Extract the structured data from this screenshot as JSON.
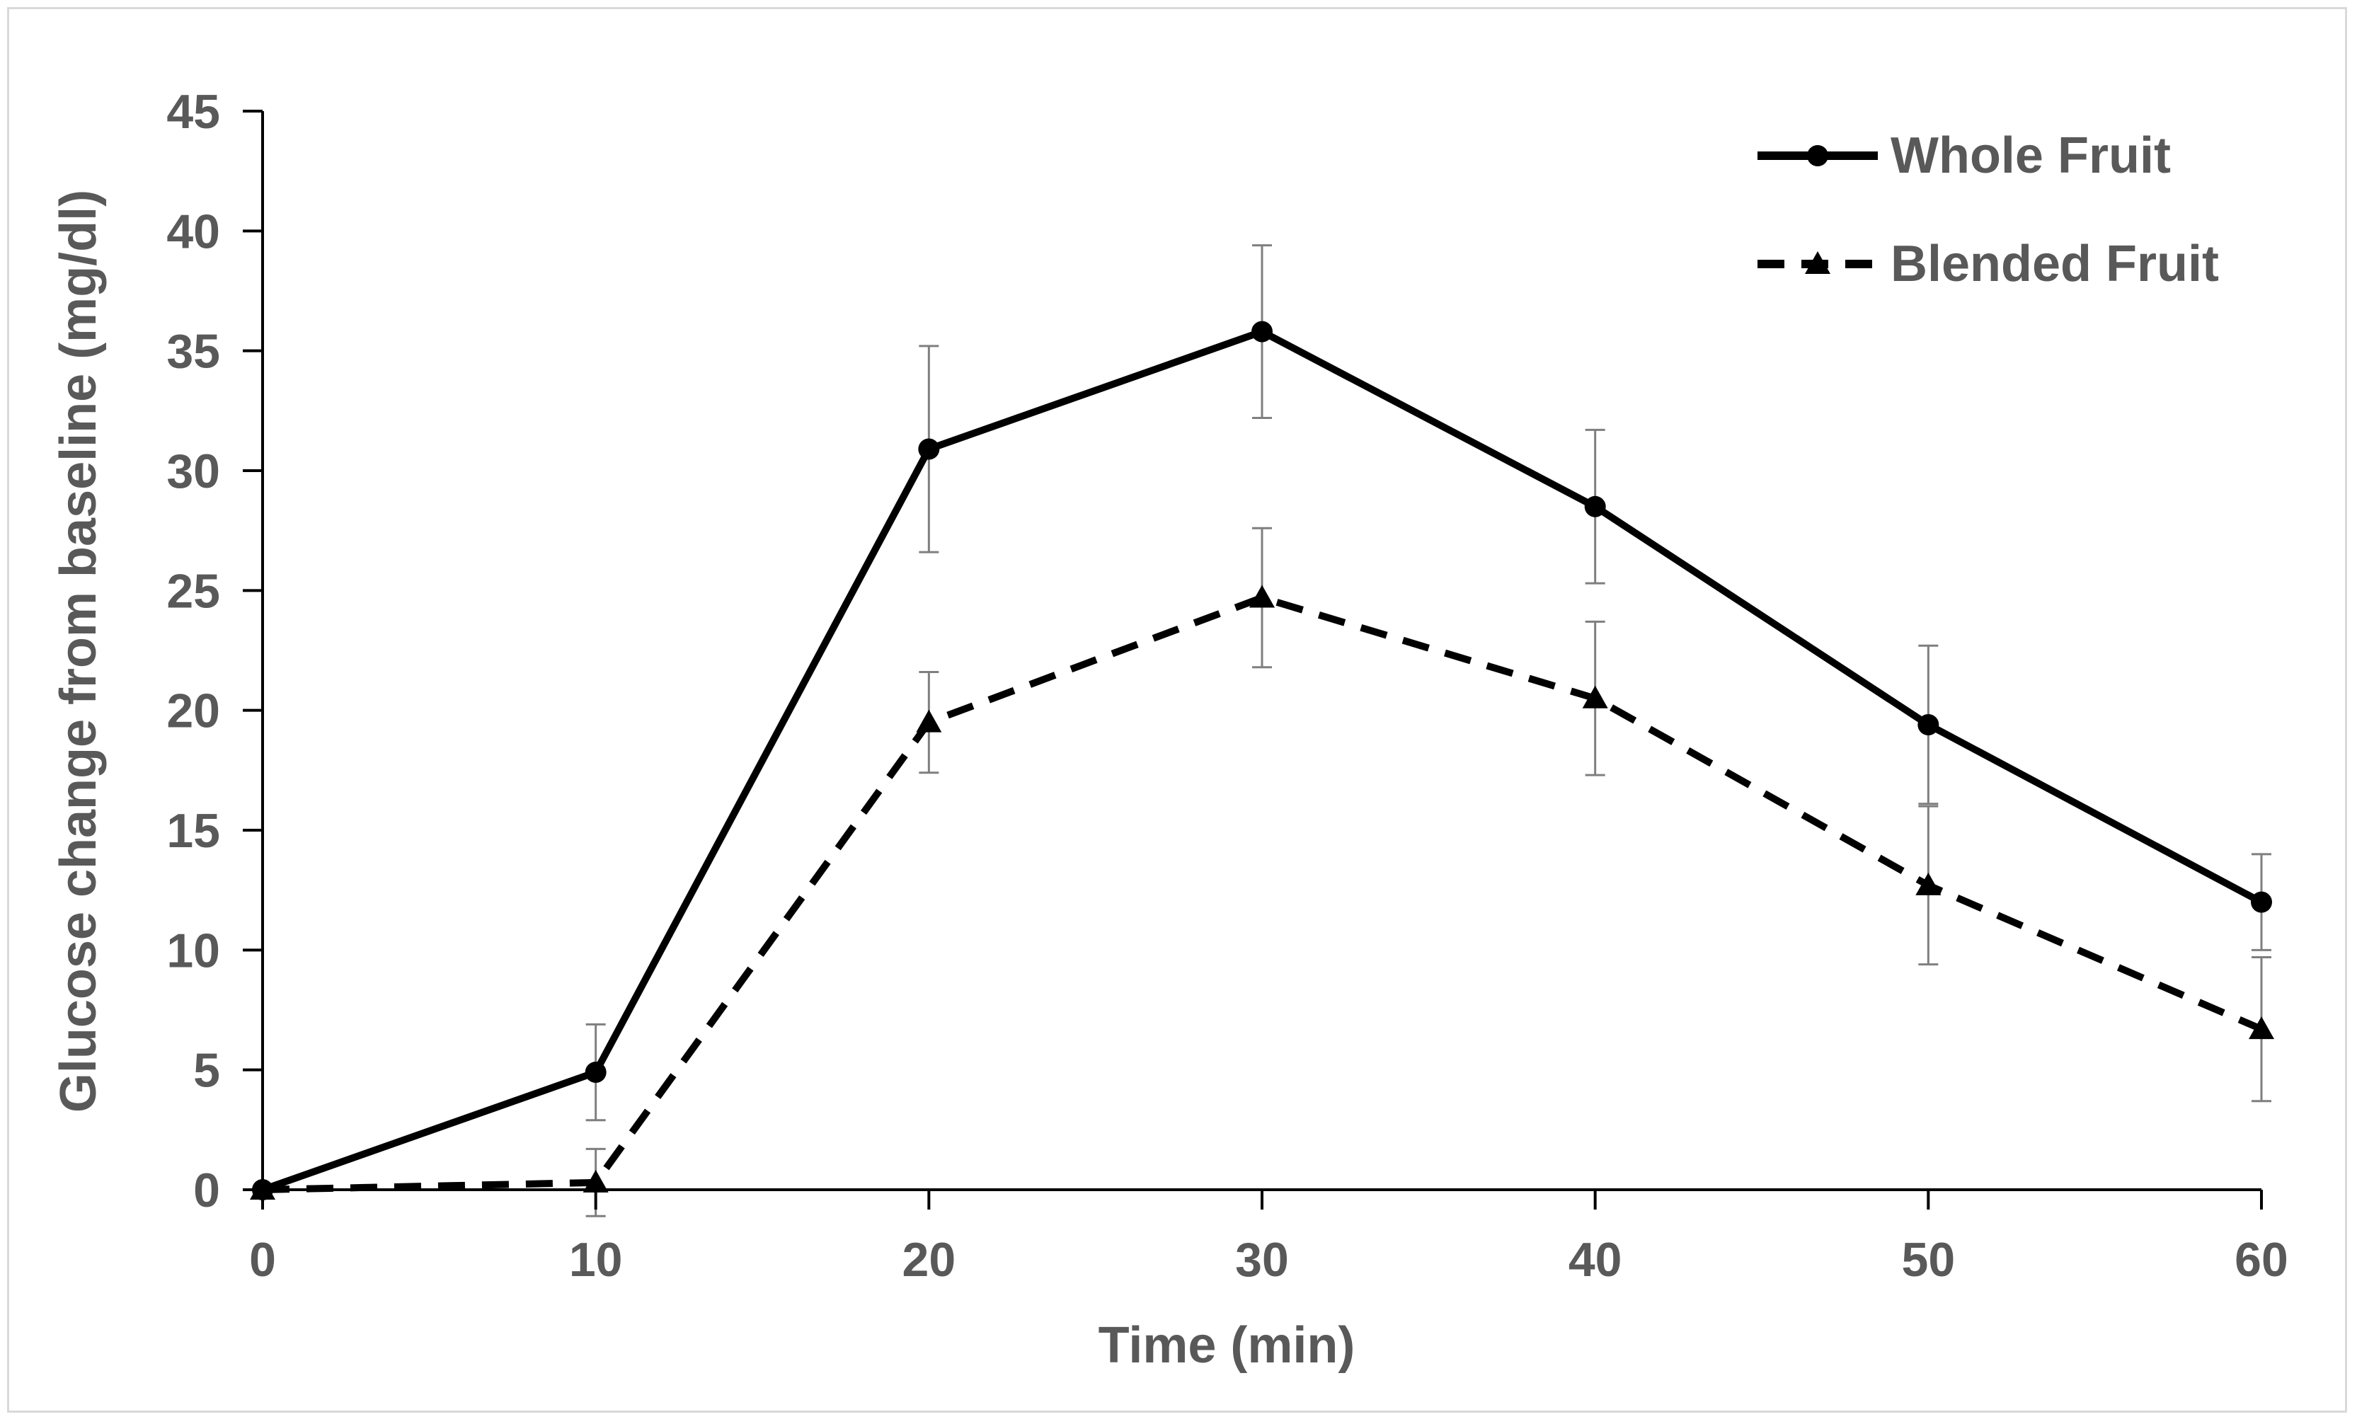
{
  "chart_data": {
    "type": "line",
    "title": "",
    "xlabel": "Time (min)",
    "ylabel": "Glucose change from baseline (mg/dl)",
    "x": [
      0,
      10,
      20,
      30,
      40,
      50,
      60
    ],
    "x_ticks": [
      "0",
      "10",
      "20",
      "30",
      "40",
      "50",
      "60"
    ],
    "y_ticks": [
      "0",
      "5",
      "10",
      "15",
      "20",
      "25",
      "30",
      "35",
      "40",
      "45"
    ],
    "xlim": [
      0,
      60
    ],
    "ylim": [
      0,
      45
    ],
    "grid": false,
    "legend_position": "top-right",
    "series": [
      {
        "name": "Whole Fruit",
        "style": "solid",
        "marker": "circle",
        "color": "#000000",
        "values": [
          0,
          4.9,
          30.9,
          35.8,
          28.5,
          19.4,
          12.0
        ],
        "error": [
          0,
          2.0,
          4.3,
          3.6,
          3.2,
          3.3,
          2.0
        ]
      },
      {
        "name": "Blended Fruit",
        "style": "dashed",
        "marker": "triangle",
        "color": "#000000",
        "values": [
          0,
          0.3,
          19.5,
          24.7,
          20.5,
          12.7,
          6.7
        ],
        "error": [
          0,
          1.4,
          2.1,
          2.9,
          3.2,
          3.3,
          3.0
        ]
      }
    ],
    "errorbar_color": "#7f7f7f",
    "axis_color": "#000000",
    "text_color": "#595959"
  }
}
